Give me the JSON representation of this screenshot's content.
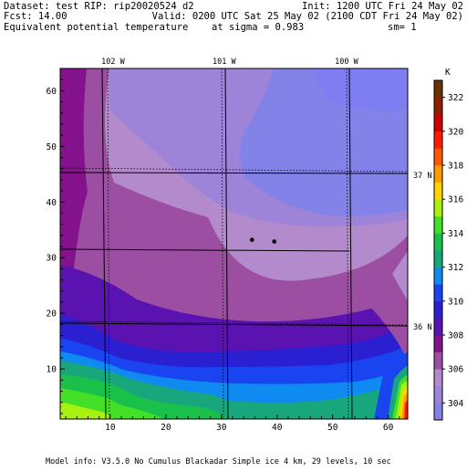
{
  "header": {
    "dataset": "Dataset: test  RIP: rip20020524 d2",
    "init": "Init: 1200 UTC Fri 24 May 02",
    "fcst": "Fcst:    14.00",
    "valid": "Valid: 0200 UTC Sat 25 May 02 (2100 CDT Fri 24 May 02)",
    "field": "Equivalent potential temperature",
    "sigma": "at sigma = 0.983",
    "sm": "sm= 1"
  },
  "footer": {
    "model_info": "Model info: V3.5.0 No Cumulus Blackadar  Simple ice    4 km,  29 levels,   10 sec"
  },
  "map": {
    "lon_labels": [
      {
        "text": "102 W",
        "x": 10.5
      },
      {
        "text": "101 W",
        "x": 30.5
      },
      {
        "text": "100 W",
        "x": 52.5
      }
    ],
    "lat_labels": [
      {
        "text": "37 N",
        "y": 44.8
      },
      {
        "text": "36 N",
        "y": 17.6
      }
    ]
  },
  "colors": {
    "c304": "#8282e8",
    "c305": "#9e84d8",
    "c306": "#b38acb",
    "c307": "#9c4ea2",
    "c308": "#84128c",
    "c309": "#5a12b0",
    "c310": "#2a20d2",
    "c311": "#1a44f0",
    "c312": "#0f8af0",
    "c313": "#18a67c",
    "c314": "#19c14a",
    "c315": "#44e028",
    "c316": "#a8f010",
    "c317": "#ffd400",
    "c318": "#ff9a00",
    "c319": "#ff5a00",
    "c320": "#ff1a00",
    "c321": "#cc0000",
    "c322": "#901e00",
    "c323": "#6a3000"
  },
  "chart_data": {
    "type": "heatmap",
    "title": "Equivalent potential temperature",
    "units": "K",
    "xlim": [
      1,
      63.5
    ],
    "ylim": [
      1,
      64
    ],
    "x_ticks": [
      10,
      20,
      30,
      40,
      50,
      60
    ],
    "y_ticks": [
      10,
      20,
      30,
      40,
      50,
      60
    ],
    "colorbar": {
      "levels": [
        304,
        306,
        308,
        310,
        312,
        314,
        316,
        318,
        320,
        322
      ],
      "unit_label": "K"
    },
    "points": [
      {
        "x": 35.5,
        "y": 33.2
      },
      {
        "x": 39.5,
        "y": 32.9
      }
    ]
  }
}
